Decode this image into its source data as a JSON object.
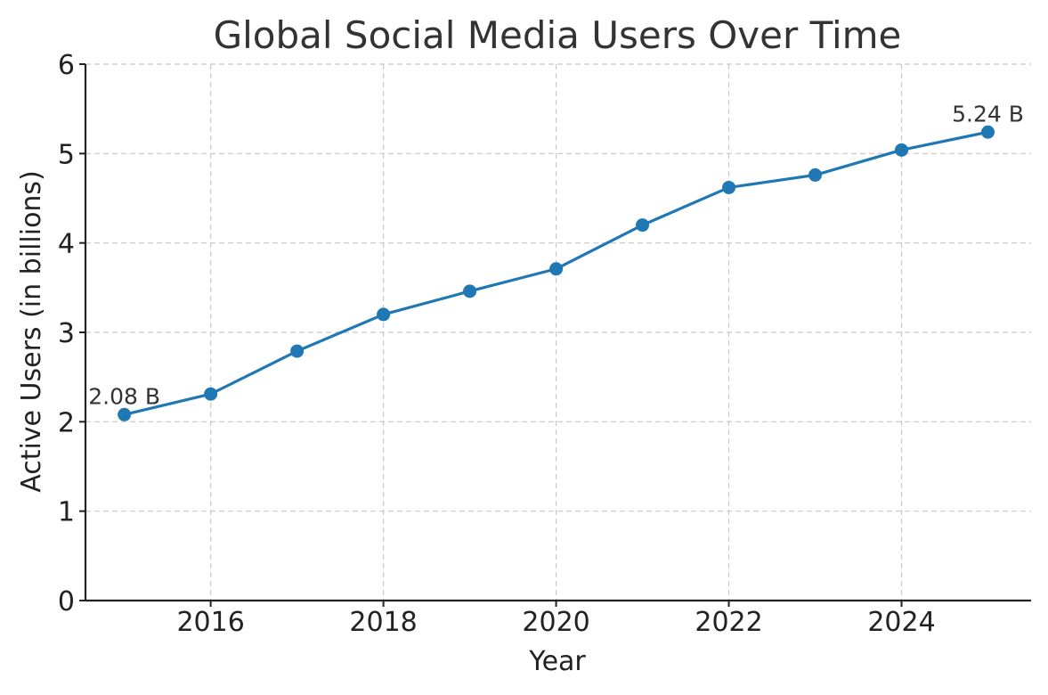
{
  "chart_data": {
    "type": "line",
    "title": "Global Social Media Users Over Time",
    "xlabel": "Year",
    "ylabel": "Active Users (in billions)",
    "xlim": [
      2014.55,
      2025.5
    ],
    "ylim": [
      0,
      6
    ],
    "x_ticks": [
      2016,
      2018,
      2020,
      2022,
      2024
    ],
    "y_ticks": [
      0,
      1,
      2,
      3,
      4,
      5,
      6
    ],
    "grid": true,
    "series": [
      {
        "color": "#1f77b4",
        "x": [
          2015,
          2016,
          2017,
          2018,
          2019,
          2020,
          2021,
          2022,
          2023,
          2024,
          2025
        ],
        "y": [
          2.08,
          2.31,
          2.79,
          3.2,
          3.46,
          3.71,
          4.2,
          4.62,
          4.76,
          5.04,
          5.24
        ]
      }
    ],
    "annotations": [
      {
        "text": "2.08 B",
        "x": 2015,
        "y": 2.08
      },
      {
        "text": "5.24 B",
        "x": 2025,
        "y": 5.24
      }
    ]
  }
}
